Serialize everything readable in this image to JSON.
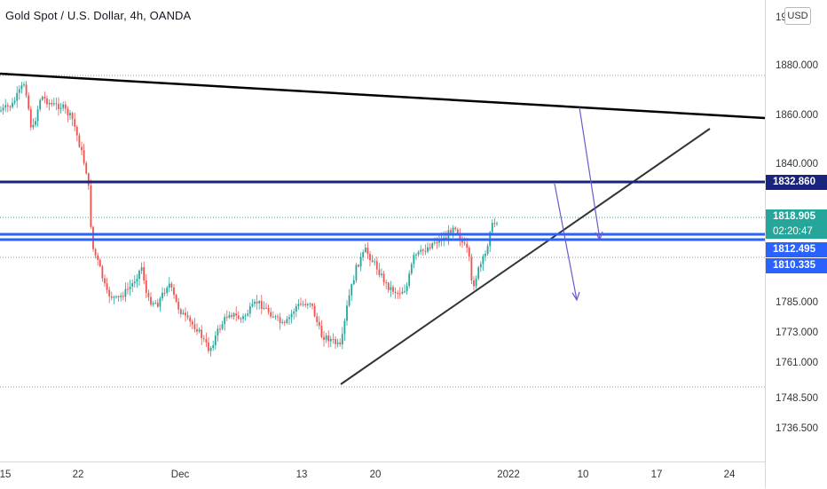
{
  "window": {
    "title": "Gold Spot / U.S. Dollar, 4h, OANDA"
  },
  "price_axis": {
    "currency": "USD",
    "top_partial": "19",
    "ticks": [
      "1880.000",
      "1860.000",
      "1840.000",
      "1785.000",
      "1773.000",
      "1761.000",
      "1748.500",
      "1736.500"
    ]
  },
  "price_labels": {
    "resistance": {
      "value": "1832.860",
      "color": "#1a237e"
    },
    "last_price": {
      "value": "1818.905",
      "countdown": "02:20:47",
      "color": "#26a69a"
    },
    "line_upper": {
      "value": "1812.495",
      "color": "#2962ff"
    },
    "line_lower": {
      "value": "1810.335",
      "color": "#2962ff"
    }
  },
  "time_axis": {
    "ticks": [
      "15",
      "22",
      "Dec",
      "13",
      "20",
      "2022",
      "10",
      "17",
      "24"
    ]
  },
  "colors": {
    "up": "#26a69a",
    "down": "#ef5350",
    "trend": "#000000",
    "horizontal": "#2962ff",
    "arrow": "#6a5acd"
  },
  "icons": {
    "candles": "candlestick-series",
    "arrows": "arrow-down-icon"
  }
}
